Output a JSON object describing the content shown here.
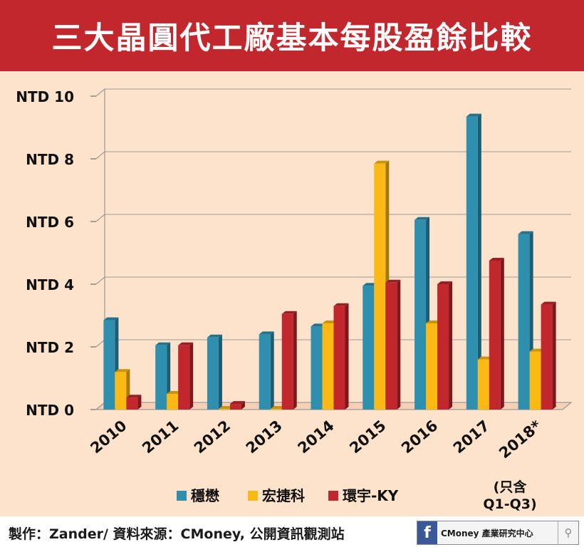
{
  "header": {
    "title": "三大晶圓代工廠基本每股盈餘比較"
  },
  "chart_data": {
    "type": "bar",
    "title": "三大晶圓代工廠基本每股盈餘比較",
    "categories": [
      "2010",
      "2011",
      "2012",
      "2013",
      "2014",
      "2015",
      "2016",
      "2017",
      "2018*"
    ],
    "category_note": "(只含\nQ1-Q3)",
    "y_ticks": [
      "NTD 0",
      "NTD 2",
      "NTD 4",
      "NTD 6",
      "NTD 8",
      "NTD 10"
    ],
    "y_tick_values": [
      0,
      2,
      4,
      6,
      8,
      10
    ],
    "ylim": [
      0,
      10
    ],
    "grid": true,
    "legend_position": "bottom",
    "series": [
      {
        "name": "穩懋",
        "color": "#2e8fae",
        "values": [
          2.85,
          2.05,
          2.3,
          2.4,
          2.65,
          3.95,
          6.05,
          9.35,
          5.6
        ]
      },
      {
        "name": "宏捷科",
        "color": "#fdb913",
        "values": [
          1.2,
          0.5,
          0.02,
          0.02,
          2.75,
          7.85,
          2.75,
          1.6,
          1.85
        ]
      },
      {
        "name": "環宇-KY",
        "color": "#c1272d",
        "values": [
          0.38,
          2.05,
          0.18,
          3.05,
          3.3,
          4.05,
          4.0,
          4.75,
          3.35
        ]
      }
    ]
  },
  "footer": {
    "credit": "製作：Zander/ 資料來源：CMoney, 公開資訊觀測站",
    "badge_icon": "f",
    "badge_text": "CMoney 產業研究中心",
    "search_icon": "⚲"
  }
}
